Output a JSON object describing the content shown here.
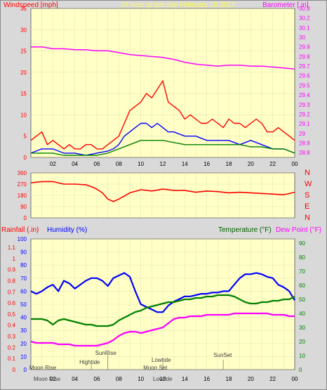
{
  "chart_data": [
    {
      "type": "line",
      "title": "24 hour graph day   February 10 2017",
      "ylabel_left": "Windspeed [mph]",
      "ylabel_right": "Barometer [.in]",
      "x_tick_labels": [
        "02",
        "04",
        "06",
        "08",
        "10",
        "12",
        "14",
        "16",
        "18",
        "20",
        "22",
        "00"
      ],
      "x_range_hours": [
        0,
        24
      ],
      "ylim_left": [
        0,
        35
      ],
      "ylim_right": [
        28.75,
        30.3
      ],
      "left_ticks": [
        "0",
        "5",
        "10",
        "15",
        "20",
        "25",
        "30",
        "35"
      ],
      "right_ticks": [
        "28.8",
        "28.9",
        "29",
        "29.1",
        "29.2",
        "29.3",
        "29.4",
        "29.5",
        "29.6",
        "29.7",
        "29.8",
        "29.9",
        "30",
        "30.1",
        "30.2",
        "30.3"
      ],
      "grid": true,
      "series": [
        {
          "key": "gust",
          "color": "#ff0000",
          "x": [
            0,
            0.5,
            1,
            1.5,
            2,
            2.5,
            3,
            3.5,
            4,
            4.5,
            5,
            5.5,
            6,
            6.5,
            7,
            7.5,
            8,
            8.5,
            9,
            9.5,
            10,
            10.5,
            11,
            11.5,
            12,
            12.5,
            13,
            13.5,
            14,
            14.5,
            15,
            15.5,
            16,
            16.5,
            17,
            17.5,
            18,
            18.5,
            19,
            19.5,
            20,
            20.5,
            21,
            21.5,
            22,
            22.5,
            23,
            23.5,
            24
          ],
          "y": [
            4,
            5,
            6,
            3,
            4,
            3,
            2,
            3,
            2,
            2,
            3,
            3,
            2,
            2,
            3,
            4,
            5,
            8,
            11,
            12,
            13,
            15,
            14,
            16,
            18,
            13,
            12,
            11,
            9,
            10,
            9,
            8,
            8,
            9,
            8,
            7,
            9,
            8,
            8,
            7,
            8,
            9,
            8,
            6,
            6,
            7,
            6,
            5,
            4
          ]
        },
        {
          "key": "speed",
          "color": "#0000ff",
          "x": [
            0,
            1,
            2,
            3,
            4,
            5,
            6,
            7,
            7.5,
            8,
            8.5,
            9,
            9.5,
            10,
            10.5,
            11,
            11.5,
            12,
            12.5,
            13,
            14,
            15,
            16,
            17,
            18,
            19,
            20,
            21,
            22,
            23,
            24
          ],
          "y": [
            1,
            2,
            2,
            1,
            1,
            0.5,
            1,
            1.5,
            2,
            3,
            5,
            6,
            7,
            8,
            8,
            7,
            8,
            7,
            6,
            6,
            5,
            5,
            4,
            4,
            4,
            3,
            4,
            3,
            2,
            2,
            1
          ]
        },
        {
          "key": "wind_avg",
          "color": "#008000",
          "x": [
            0,
            1,
            2,
            3,
            4,
            5,
            6,
            7,
            8,
            9,
            10,
            11,
            12,
            13,
            14,
            15,
            16,
            17,
            18,
            19,
            20,
            21,
            22,
            23,
            24
          ],
          "y": [
            1,
            1,
            1,
            0.5,
            0.5,
            0.5,
            0.5,
            1,
            2,
            3,
            4,
            4,
            4,
            3.5,
            3,
            3,
            3,
            3,
            3,
            3,
            2.5,
            2.5,
            2,
            2,
            1
          ]
        },
        {
          "key": "barometer",
          "color": "#ff00ff",
          "axis": "right",
          "x": [
            0,
            1,
            2,
            3,
            4,
            5,
            6,
            7,
            8,
            9,
            10,
            11,
            12,
            13,
            14,
            15,
            16,
            17,
            18,
            19,
            20,
            21,
            22,
            23,
            24
          ],
          "y": [
            29.9,
            29.9,
            29.88,
            29.88,
            29.87,
            29.87,
            29.86,
            29.86,
            29.84,
            29.82,
            29.81,
            29.8,
            29.79,
            29.77,
            29.74,
            29.72,
            29.71,
            29.7,
            29.71,
            29.71,
            29.7,
            29.7,
            29.69,
            29.68,
            29.67
          ]
        }
      ]
    },
    {
      "type": "line",
      "ylim": [
        0,
        360
      ],
      "y_ticks": [
        "0",
        "90",
        "180",
        "270",
        "360"
      ],
      "compass_labels": [
        "N",
        "W",
        "S",
        "E",
        "N"
      ],
      "series": [
        {
          "key": "direction",
          "color": "#ff0000",
          "x": [
            0,
            1,
            2,
            3,
            4,
            5,
            5.5,
            6,
            6.5,
            7,
            7.5,
            8,
            8.5,
            9,
            10,
            11,
            12,
            13,
            14,
            15,
            16,
            17,
            18,
            19,
            20,
            21,
            22,
            23,
            24
          ],
          "y": [
            280,
            290,
            290,
            270,
            270,
            265,
            250,
            230,
            200,
            150,
            130,
            150,
            175,
            200,
            225,
            215,
            230,
            220,
            220,
            205,
            215,
            210,
            200,
            205,
            200,
            195,
            190,
            185,
            205
          ]
        }
      ]
    },
    {
      "type": "line",
      "ylabel_left_1": "Rainfall (.in)",
      "ylabel_left_2": "Humidity (%)",
      "ylabel_right_1": "Temperature (°F)",
      "ylabel_right_2": "Dew Point (°F)",
      "rain_ticks": [
        "0",
        "0.1",
        "0.2",
        "0.3",
        "0.4",
        "0.5",
        "0.6",
        "0.7",
        "0.8",
        "0.9",
        "1",
        "1.1"
      ],
      "humidity_ticks": [
        "0",
        "10",
        "20",
        "30",
        "40",
        "50",
        "60",
        "70",
        "80",
        "90",
        "100"
      ],
      "temp_ticks": [
        "0",
        "10",
        "20",
        "30",
        "40",
        "50",
        "60",
        "70",
        "80",
        "90"
      ],
      "ylim_right": [
        0,
        93
      ],
      "series": [
        {
          "key": "humidity",
          "color": "#0000ff",
          "axis": "humidity",
          "x": [
            0,
            0.5,
            1,
            1.5,
            2,
            2.5,
            3,
            3.5,
            4,
            4.5,
            5,
            5.5,
            6,
            6.5,
            7,
            7.5,
            8,
            8.5,
            9,
            9.5,
            10,
            10.5,
            11,
            11.5,
            12,
            12.5,
            13,
            13.5,
            14,
            14.5,
            15,
            15.5,
            16,
            16.5,
            17,
            17.5,
            18,
            18.5,
            19,
            19.5,
            20,
            20.5,
            21,
            21.5,
            22,
            22.5,
            23,
            23.5,
            24
          ],
          "y": [
            60,
            58,
            60,
            63,
            65,
            60,
            68,
            66,
            62,
            65,
            68,
            70,
            70,
            68,
            64,
            70,
            72,
            74,
            71,
            60,
            50,
            48,
            46,
            44,
            44,
            49,
            52,
            54,
            56,
            56,
            57,
            58,
            58,
            59,
            59,
            60,
            60,
            65,
            70,
            73,
            73,
            74,
            73,
            71,
            70,
            65,
            63,
            60,
            53
          ]
        },
        {
          "key": "temperature",
          "color": "#008000",
          "axis": "temperature",
          "x": [
            0,
            0.5,
            1,
            1.5,
            2,
            2.5,
            3,
            3.5,
            4,
            4.5,
            5,
            5.5,
            6,
            6.5,
            7,
            7.5,
            8,
            8.5,
            9,
            9.5,
            10,
            10.5,
            11,
            11.5,
            12,
            12.5,
            13,
            13.5,
            14,
            14.5,
            15,
            15.5,
            16,
            16.5,
            17,
            17.5,
            18,
            18.5,
            19,
            19.5,
            20,
            20.5,
            21,
            21.5,
            22,
            22.5,
            23,
            23.5,
            24
          ],
          "y": [
            36,
            36,
            36,
            35,
            32,
            35,
            36,
            35,
            34,
            33,
            32,
            32,
            31,
            31,
            31,
            32,
            35,
            37,
            39,
            41,
            42,
            44,
            45,
            46,
            47,
            48,
            48,
            49,
            50,
            50,
            51,
            51,
            52,
            52,
            53,
            53,
            53,
            52,
            50,
            48,
            47,
            47,
            48,
            48,
            49,
            49,
            50,
            50,
            52
          ]
        },
        {
          "key": "dewpoint",
          "color": "#ff00ff",
          "axis": "temperature",
          "x": [
            0,
            0.5,
            1,
            1.5,
            2,
            2.5,
            3,
            3.5,
            4,
            4.5,
            5,
            5.5,
            6,
            6.5,
            7,
            7.5,
            8,
            8.5,
            9,
            9.5,
            10,
            10.5,
            11,
            11.5,
            12,
            12.5,
            13,
            13.5,
            14,
            14.5,
            15,
            15.5,
            16,
            16.5,
            17,
            17.5,
            18,
            18.5,
            19,
            19.5,
            20,
            20.5,
            21,
            21.5,
            22,
            22.5,
            23,
            23.5,
            24
          ],
          "y": [
            20,
            19,
            19,
            19,
            19,
            18,
            18,
            18,
            17,
            17,
            17,
            17,
            17,
            18,
            19,
            21,
            24,
            26,
            27,
            27,
            26,
            27,
            28,
            29,
            30,
            33,
            36,
            37,
            37,
            38,
            38,
            38,
            39,
            39,
            39,
            39,
            39,
            40,
            40,
            40,
            40,
            40,
            40,
            40,
            39,
            39,
            39,
            38,
            38
          ]
        }
      ],
      "annotations": {
        "sunrise": {
          "hour": 7.0,
          "label": "SunRise"
        },
        "hightide": {
          "hour": 5.5,
          "label": "Hightide"
        },
        "lowtide": {
          "hour": 12.0,
          "label": "Lowtide"
        },
        "moonset": {
          "hour": 11.5,
          "label": "Moon Set"
        },
        "moonrise": {
          "hour": 0.5,
          "label": "Moon Rise"
        },
        "sunset": {
          "hour": 17.5,
          "label": "SunSet"
        }
      }
    }
  ]
}
